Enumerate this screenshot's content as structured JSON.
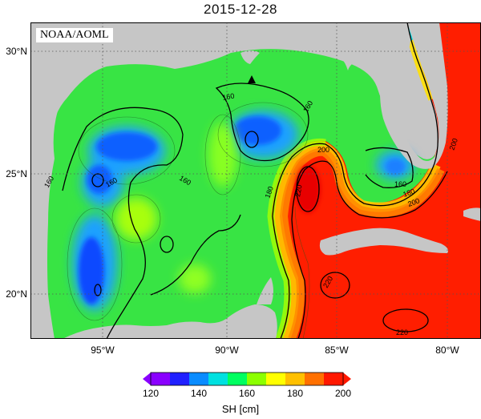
{
  "title": "2015-12-28",
  "credit": "NOAA/AOML",
  "lat_labels": [
    "30°N",
    "25°N",
    "20°N"
  ],
  "lon_labels": [
    "95°W",
    "90°W",
    "85°W",
    "80°W"
  ],
  "contour_labels": [
    "160",
    "160",
    "160",
    "160",
    "160",
    "180",
    "200",
    "220",
    "220",
    "220",
    "200",
    "180",
    "200",
    "160"
  ],
  "colorbar": {
    "ticks": [
      "120",
      "140",
      "160",
      "180",
      "200"
    ],
    "label": "SH [cm]",
    "colors": [
      "#8a00ff",
      "#2020ff",
      "#0a8cff",
      "#00e0e0",
      "#00ff60",
      "#8cff00",
      "#ffff00",
      "#ffc000",
      "#ff7000",
      "#ff1800"
    ]
  },
  "colors": {
    "land": "#c6c6c6",
    "gulf_green": "#38e444",
    "warm_red": "#ff1e00"
  }
}
